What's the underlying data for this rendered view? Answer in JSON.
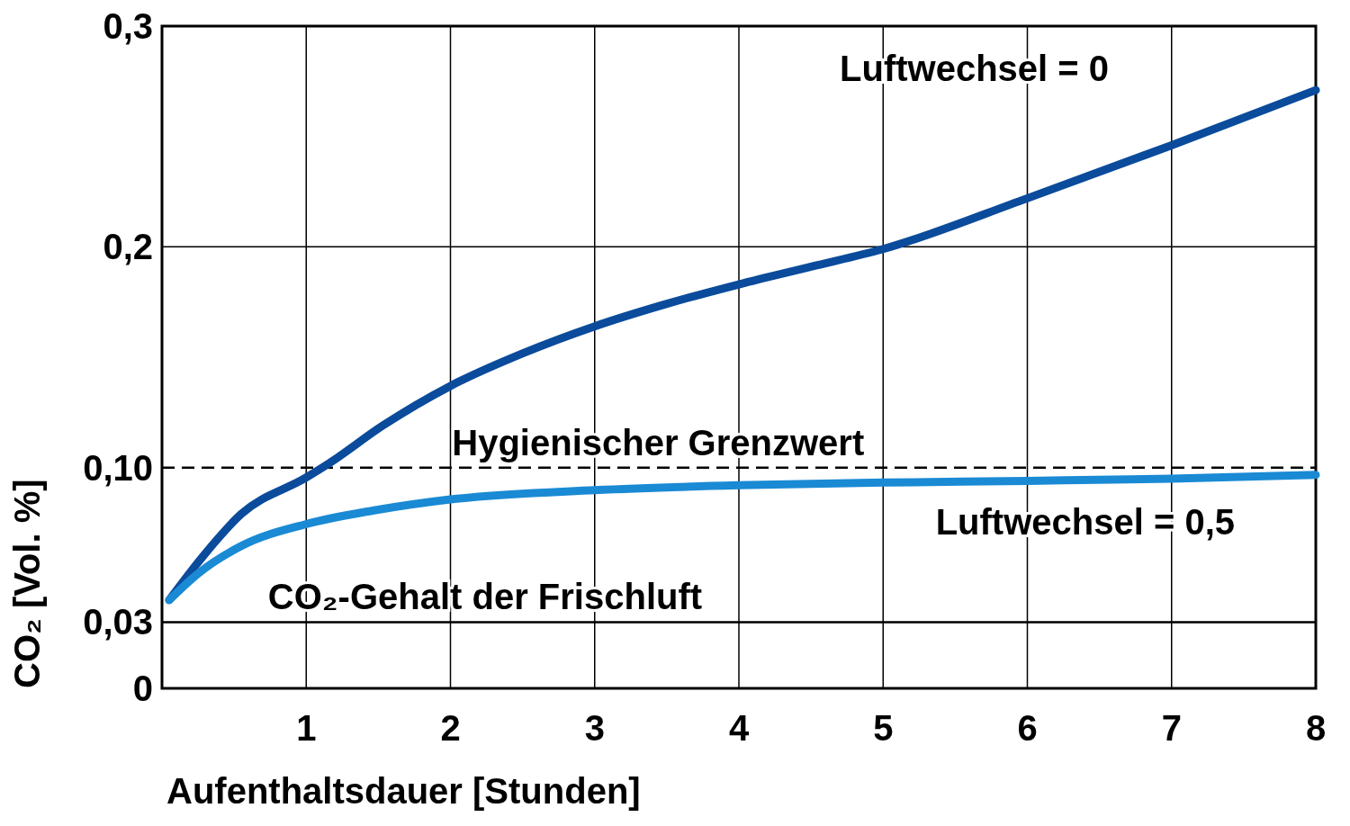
{
  "chart_data": {
    "type": "line",
    "xlabel": "Aufenthaltsdauer [Stunden]",
    "ylabel": "CO₂ [Vol. %]",
    "series": [
      {
        "name": "Luftwechsel = 0",
        "color": "#0a4b9b",
        "x": [
          0.05,
          0.28,
          0.55,
          1,
          1.16,
          1.53,
          2,
          2.51,
          3,
          3.49,
          4,
          4.5,
          5,
          6,
          7,
          8
        ],
        "values": [
          0.04,
          0.0595,
          0.079,
          0.0955,
          0.102,
          0.119,
          0.137,
          0.152,
          0.164,
          0.174,
          0.183,
          0.191,
          0.199,
          0.222,
          0.246,
          0.271
        ]
      },
      {
        "name": "Luftwechsel = 0,5",
        "color": "#1a8ad4",
        "x": [
          0.05,
          0.25,
          0.55,
          1,
          1.47,
          2,
          3,
          4,
          5,
          6,
          7,
          8
        ],
        "values": [
          0.04,
          0.052,
          0.0645,
          0.0744,
          0.0806,
          0.0856,
          0.0898,
          0.092,
          0.0932,
          0.094,
          0.095,
          0.0967
        ]
      }
    ],
    "xlim": [
      0,
      8
    ],
    "xticks": [
      1,
      2,
      3,
      4,
      5,
      6,
      7,
      8
    ],
    "ylim": [
      0,
      0.3
    ],
    "yticks": [
      {
        "value": 0,
        "label": "0"
      },
      {
        "value": 0.03,
        "label": "0,03"
      },
      {
        "value": 0.1,
        "label": "0,10"
      },
      {
        "value": 0.2,
        "label": "0,2"
      },
      {
        "value": 0.3,
        "label": "0,3"
      }
    ],
    "ref_lines": [
      {
        "axis": "y",
        "value": 0.1,
        "label": "Hygienischer Grenzwert",
        "line_style": "dashed",
        "color": "#000000"
      },
      {
        "axis": "y",
        "value": 0.03,
        "label": "CO₂-Gehalt der Frischluft",
        "line_style": "solid",
        "color": "#000000"
      }
    ],
    "grid": true,
    "legend": false,
    "line_style": "solid",
    "marker": "none"
  }
}
